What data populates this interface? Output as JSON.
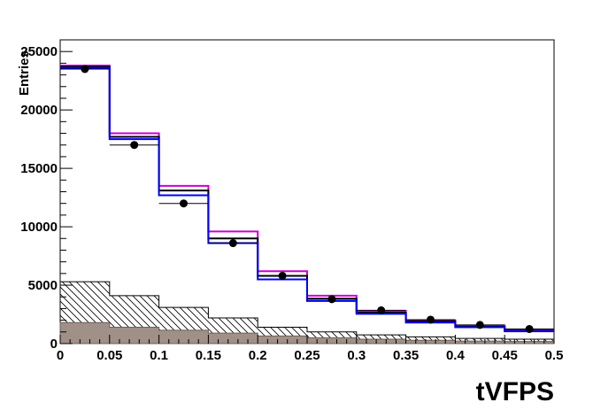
{
  "chart_data": {
    "type": "histogram",
    "xlabel": "tVFPS",
    "ylabel": "Entries",
    "xlim": [
      0,
      0.5
    ],
    "ylim": [
      0,
      26000
    ],
    "grid": false,
    "bin_edges": [
      0,
      0.05,
      0.1,
      0.15,
      0.2,
      0.25,
      0.3,
      0.35,
      0.4,
      0.45,
      0.5
    ],
    "x_ticks": [
      "0",
      "0.05",
      "0.1",
      "0.15",
      "0.2",
      "0.25",
      "0.3",
      "0.35",
      "0.4",
      "0.45",
      "0.5"
    ],
    "y_ticks": [
      "0",
      "5000",
      "10000",
      "15000",
      "20000",
      "25000"
    ],
    "data_points": {
      "x": [
        0.025,
        0.075,
        0.125,
        0.175,
        0.225,
        0.275,
        0.325,
        0.375,
        0.425,
        0.475
      ],
      "y": [
        23500,
        17000,
        12000,
        8600,
        5800,
        3800,
        2850,
        2050,
        1600,
        1250
      ]
    },
    "series": [
      {
        "style": "magenta-line",
        "color": "#cc00cc",
        "values": [
          23800,
          18000,
          13500,
          9600,
          6200,
          4100,
          2800,
          2000,
          1550,
          1150
        ]
      },
      {
        "style": "black-line",
        "color": "#000000",
        "values": [
          23700,
          17700,
          13100,
          9000,
          5800,
          3850,
          2650,
          1900,
          1450,
          1100
        ]
      },
      {
        "style": "blue-line",
        "color": "#0000ff",
        "values": [
          23600,
          17500,
          12700,
          8600,
          5500,
          3650,
          2550,
          1800,
          1400,
          1050
        ]
      },
      {
        "style": "hatched-fill",
        "color": "#000000",
        "values": [
          5300,
          4100,
          3100,
          2200,
          1400,
          1000,
          750,
          580,
          450,
          380
        ]
      },
      {
        "style": "gray-fill",
        "color": "#a09088",
        "values": [
          1800,
          1400,
          1150,
          900,
          650,
          500,
          380,
          280,
          220,
          180
        ]
      }
    ]
  }
}
